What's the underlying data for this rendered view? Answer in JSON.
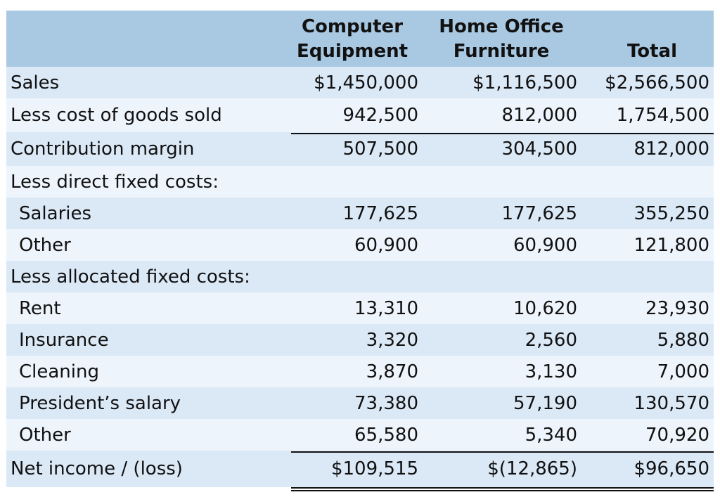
{
  "header": {
    "col1": "Computer\nEquipment",
    "col1_line1": "Computer",
    "col1_line2": "Equipment",
    "col2_line1": "Home Office",
    "col2_line2": "Furniture",
    "col3": "Total"
  },
  "rows": [
    {
      "label": "Sales",
      "c1": "$1,450,000",
      "c2": "$1,116,500",
      "c3": "$2,566,500"
    },
    {
      "label": "Less cost of goods sold",
      "c1": "942,500",
      "c2": "812,000",
      "c3": "1,754,500"
    },
    {
      "label": "Contribution margin",
      "c1": "507,500",
      "c2": "304,500",
      "c3": "812,000"
    },
    {
      "label": "Less direct fixed costs:",
      "c1": "",
      "c2": "",
      "c3": ""
    },
    {
      "label": "Salaries",
      "c1": "177,625",
      "c2": "177,625",
      "c3": "355,250"
    },
    {
      "label": "Other",
      "c1": "60,900",
      "c2": "60,900",
      "c3": "121,800"
    },
    {
      "label": "Less allocated fixed costs:",
      "c1": "",
      "c2": "",
      "c3": ""
    },
    {
      "label": "Rent",
      "c1": "13,310",
      "c2": "10,620",
      "c3": "23,930"
    },
    {
      "label": "Insurance",
      "c1": "3,320",
      "c2": "2,560",
      "c3": "5,880"
    },
    {
      "label": "Cleaning",
      "c1": "3,870",
      "c2": "3,130",
      "c3": "7,000"
    },
    {
      "label": "President’s salary",
      "c1": "73,380",
      "c2": "57,190",
      "c3": "130,570"
    },
    {
      "label": "Other",
      "c1": "65,580",
      "c2": "5,340",
      "c3": "70,920"
    },
    {
      "label": "Net income / (loss)",
      "c1": "$109,515",
      "c2": "$(12,865)",
      "c3": "$96,650"
    }
  ],
  "colors": {
    "header_bg": "#a9c8e2",
    "row_odd": "#dbe8f6",
    "row_even": "#eef4fb",
    "text": "#111111"
  }
}
